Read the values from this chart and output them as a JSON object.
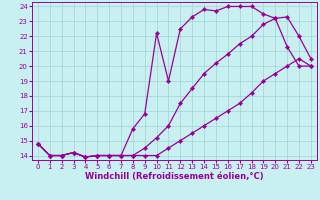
{
  "xlabel": "Windchill (Refroidissement éolien,°C)",
  "bg_color": "#c8f0f0",
  "line_color": "#990099",
  "marker": "D",
  "markersize": 2.2,
  "linewidth": 0.9,
  "xlim": [
    -0.5,
    23.5
  ],
  "ylim": [
    13.7,
    24.3
  ],
  "yticks": [
    14,
    15,
    16,
    17,
    18,
    19,
    20,
    21,
    22,
    23,
    24
  ],
  "xticks": [
    0,
    1,
    2,
    3,
    4,
    5,
    6,
    7,
    8,
    9,
    10,
    11,
    12,
    13,
    14,
    15,
    16,
    17,
    18,
    19,
    20,
    21,
    22,
    23
  ],
  "curve1_x": [
    0,
    1,
    2,
    3,
    4,
    5,
    6,
    7,
    8,
    9,
    10,
    11,
    12,
    13,
    14,
    15,
    16,
    17,
    18,
    19,
    20,
    21,
    22,
    23
  ],
  "curve1_y": [
    14.8,
    14.0,
    14.0,
    14.2,
    13.9,
    14.0,
    14.0,
    14.0,
    15.8,
    16.8,
    22.2,
    19.0,
    22.5,
    23.3,
    23.8,
    23.7,
    24.0,
    24.0,
    24.0,
    23.5,
    23.2,
    21.3,
    20.0,
    20.0
  ],
  "curve2_x": [
    0,
    1,
    2,
    3,
    4,
    5,
    6,
    7,
    8,
    9,
    10,
    11,
    12,
    13,
    14,
    15,
    16,
    17,
    18,
    19,
    20,
    21,
    22,
    23
  ],
  "curve2_y": [
    14.8,
    14.0,
    14.0,
    14.2,
    13.9,
    14.0,
    14.0,
    14.0,
    14.0,
    14.5,
    15.2,
    16.0,
    17.5,
    18.5,
    19.5,
    20.2,
    20.8,
    21.5,
    22.0,
    22.8,
    23.2,
    23.3,
    22.0,
    20.5
  ],
  "curve3_x": [
    0,
    1,
    2,
    3,
    4,
    5,
    6,
    7,
    8,
    9,
    10,
    11,
    12,
    13,
    14,
    15,
    16,
    17,
    18,
    19,
    20,
    21,
    22,
    23
  ],
  "curve3_y": [
    14.8,
    14.0,
    14.0,
    14.2,
    13.9,
    14.0,
    14.0,
    14.0,
    14.0,
    14.0,
    14.0,
    14.5,
    15.0,
    15.5,
    16.0,
    16.5,
    17.0,
    17.5,
    18.2,
    19.0,
    19.5,
    20.0,
    20.5,
    20.0
  ],
  "grid_color": "#9dd4d4",
  "tick_fontsize": 5.0,
  "label_fontsize": 6.0
}
